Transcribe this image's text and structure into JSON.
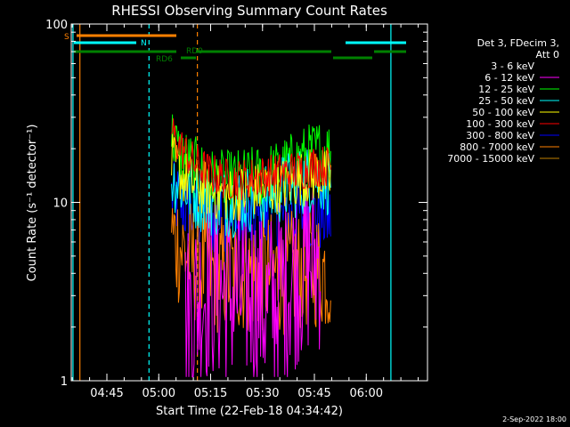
{
  "chart_data": {
    "type": "line",
    "title": "RHESSI Observing Summary Count Rates",
    "xlabel": "Start Time (22-Feb-18 04:34:42)",
    "ylabel": "Count Rate (s⁻¹ detector⁻¹)",
    "x_unit": "minutes since 04:34:42",
    "xlim": [
      0,
      103
    ],
    "ylim": [
      1,
      100
    ],
    "y_scale": "log",
    "x_ticks": [
      "04:45",
      "05:00",
      "05:15",
      "05:30",
      "05:45",
      "06:00"
    ],
    "x_tick_values": [
      10.3,
      25.3,
      40.3,
      55.3,
      70.3,
      85.3
    ],
    "y_ticks": [
      "1",
      "10",
      "100"
    ],
    "y_tick_values": [
      1,
      10,
      100
    ],
    "legend_header": [
      "Det 3, FDecim 3,",
      "Att 0"
    ],
    "series": [
      {
        "name": "3 - 6 keV",
        "color": "#000000",
        "values": []
      },
      {
        "name": "6 - 12 keV",
        "color": "#ff00ff",
        "values": [
          [
            33,
            2.2
          ],
          [
            40,
            3.5
          ],
          [
            47,
            3.0
          ],
          [
            52,
            3.2
          ],
          [
            57,
            2.5
          ],
          [
            62,
            3.5
          ],
          [
            67,
            4.5
          ],
          [
            72,
            5.0
          ]
        ]
      },
      {
        "name": "12 - 25 keV",
        "color": "#00ff00",
        "values": [
          [
            29,
            24
          ],
          [
            31,
            19
          ],
          [
            35,
            16
          ],
          [
            40,
            13.5
          ],
          [
            45,
            13
          ],
          [
            50,
            13.5
          ],
          [
            55,
            14
          ],
          [
            60,
            15
          ],
          [
            65,
            17
          ],
          [
            70,
            19
          ],
          [
            73,
            20
          ],
          [
            75,
            19
          ]
        ]
      },
      {
        "name": "25 - 50 keV",
        "color": "#00ffff",
        "values": [
          [
            29,
            14
          ],
          [
            32,
            12.5
          ],
          [
            36,
            11
          ],
          [
            41,
            10
          ],
          [
            46,
            10
          ],
          [
            51,
            10.5
          ],
          [
            56,
            11
          ],
          [
            61,
            12
          ],
          [
            66,
            13
          ],
          [
            71,
            14
          ],
          [
            75,
            13
          ]
        ]
      },
      {
        "name": "50 - 100 keV",
        "color": "#ffff00",
        "values": [
          [
            29,
            17
          ],
          [
            32,
            14
          ],
          [
            36,
            12.5
          ],
          [
            41,
            11.5
          ],
          [
            46,
            11
          ],
          [
            51,
            11.5
          ],
          [
            56,
            12
          ],
          [
            61,
            12.5
          ],
          [
            66,
            13.5
          ],
          [
            71,
            14.5
          ],
          [
            75,
            13.5
          ]
        ]
      },
      {
        "name": "100 - 300 keV",
        "color": "#ff0000",
        "values": [
          [
            29,
            25
          ],
          [
            31,
            21
          ],
          [
            35,
            17
          ],
          [
            40,
            14.5
          ],
          [
            45,
            13.5
          ],
          [
            50,
            13.5
          ],
          [
            55,
            14
          ],
          [
            60,
            14.5
          ],
          [
            65,
            15
          ],
          [
            70,
            16
          ],
          [
            75,
            16
          ]
        ]
      },
      {
        "name": "300 - 800 keV",
        "color": "#0000ff",
        "values": [
          [
            29,
            11
          ],
          [
            32,
            9.5
          ],
          [
            36,
            8.5
          ],
          [
            41,
            8
          ],
          [
            46,
            7.5
          ],
          [
            51,
            7.5
          ],
          [
            56,
            8
          ],
          [
            61,
            8
          ],
          [
            66,
            8.5
          ],
          [
            71,
            8.5
          ],
          [
            75,
            8
          ]
        ]
      },
      {
        "name": "800 - 7000 keV",
        "color": "#ff8000",
        "values": [
          [
            29,
            6.5
          ],
          [
            32,
            5.5
          ],
          [
            36,
            4.5
          ],
          [
            41,
            4
          ],
          [
            46,
            4
          ],
          [
            51,
            4
          ],
          [
            56,
            4
          ],
          [
            61,
            4
          ],
          [
            66,
            4.2
          ],
          [
            71,
            4.3
          ],
          [
            75,
            4
          ]
        ]
      },
      {
        "name": "7000 - 15000 keV",
        "color": "#c08000",
        "values": []
      }
    ],
    "state_bars": {
      "S_label": "S",
      "N_label": "N",
      "RD6_label": "RD6",
      "RD0_label": "RD0"
    },
    "footer": "2-Sep-2022 18:00"
  }
}
